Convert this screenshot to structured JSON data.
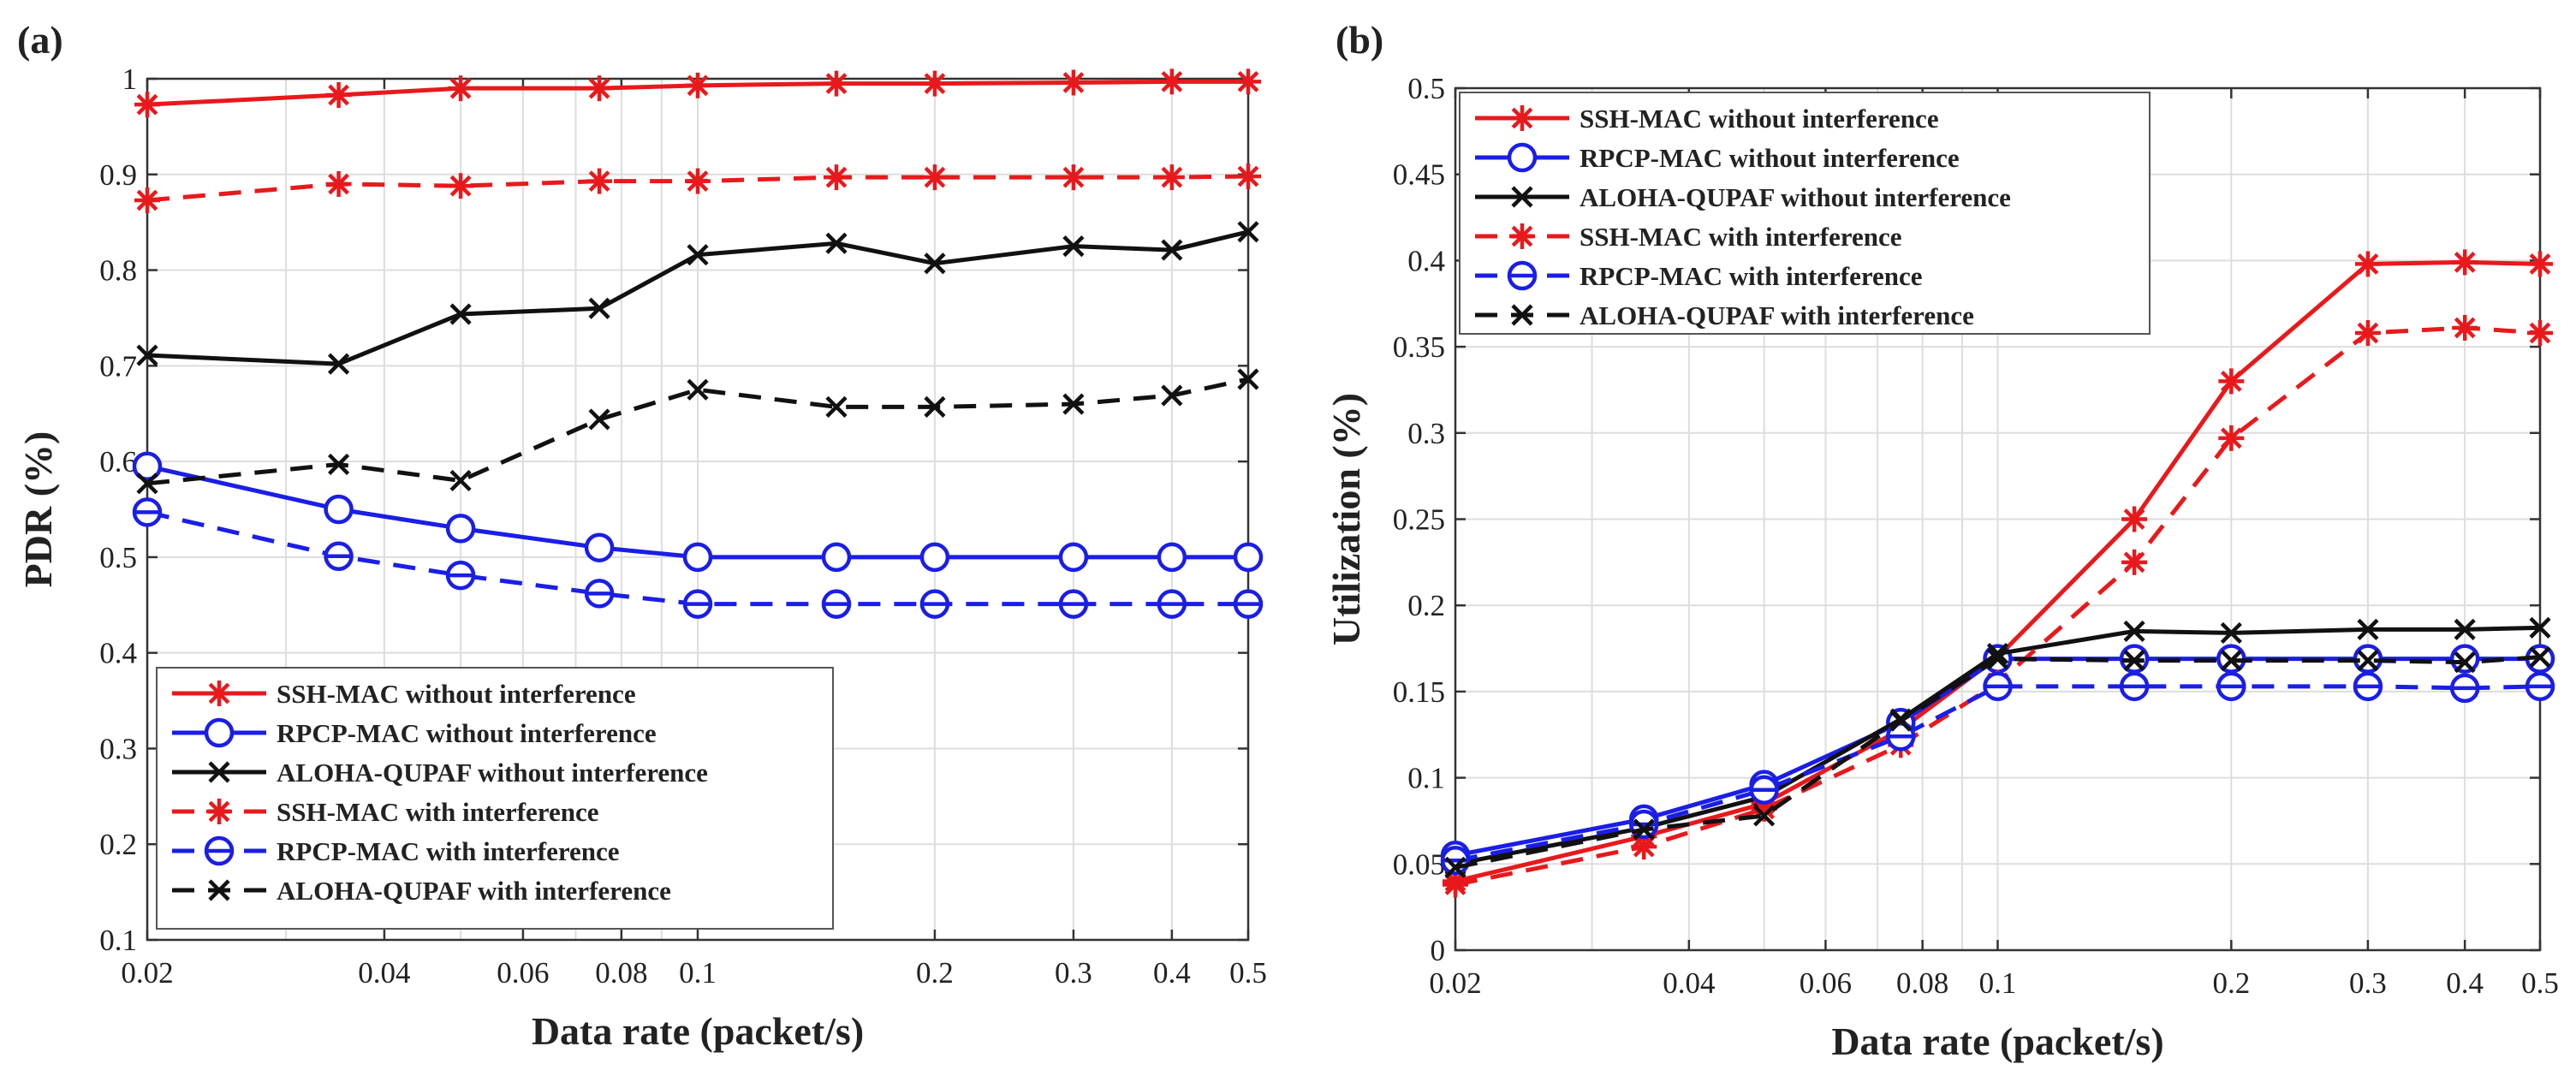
{
  "colors": {
    "red": "#e8191c",
    "blue": "#1a1ee6",
    "black": "#111111",
    "grid": "#dddddd",
    "axis": "#333333"
  },
  "chart_data": [
    {
      "type": "line",
      "panel_label": "(a)",
      "xlabel": "Data rate (packet/s)",
      "ylabel": "PDR (%)",
      "xscale": "log",
      "xlim": [
        0.02,
        0.5
      ],
      "ylim": [
        0.1,
        1
      ],
      "xticks": [
        0.02,
        0.04,
        0.06,
        0.08,
        0.1,
        0.2,
        0.3,
        0.4,
        0.5
      ],
      "xtick_labels": [
        "0.02",
        "0.04",
        "0.06",
        "0.08",
        "0.1",
        "0.2",
        "0.3",
        "0.4",
        "0.5"
      ],
      "yticks": [
        0.1,
        0.2,
        0.3,
        0.4,
        0.5,
        0.6,
        0.7,
        0.8,
        0.9,
        1
      ],
      "ytick_labels": [
        "0.1",
        "0.2",
        "0.3",
        "0.4",
        "0.5",
        "0.6",
        "0.7",
        "0.8",
        "0.9",
        "1"
      ],
      "grid": true,
      "legend_position": "bottom-left",
      "x": [
        0.02,
        0.035,
        0.05,
        0.075,
        0.1,
        0.15,
        0.2,
        0.3,
        0.4,
        0.5
      ],
      "series": [
        {
          "name": "SSH-MAC without interference",
          "color": "red",
          "dash": "solid",
          "marker": "asterisk",
          "values": [
            0.973,
            0.983,
            0.99,
            0.99,
            0.993,
            0.995,
            0.995,
            0.996,
            0.997,
            0.997
          ]
        },
        {
          "name": "RPCP-MAC without interference",
          "color": "blue",
          "dash": "solid",
          "marker": "circle",
          "values": [
            0.595,
            0.55,
            0.53,
            0.51,
            0.5,
            0.5,
            0.5,
            0.5,
            0.5,
            0.5
          ]
        },
        {
          "name": "ALOHA-QUPAF without interference",
          "color": "black",
          "dash": "solid",
          "marker": "x",
          "values": [
            0.711,
            0.702,
            0.754,
            0.76,
            0.816,
            0.828,
            0.807,
            0.825,
            0.821,
            0.84
          ]
        },
        {
          "name": "SSH-MAC with interference",
          "color": "red",
          "dash": "dashed",
          "marker": "asterisk",
          "values": [
            0.873,
            0.89,
            0.888,
            0.893,
            0.893,
            0.897,
            0.897,
            0.897,
            0.897,
            0.898
          ]
        },
        {
          "name": "RPCP-MAC with interference",
          "color": "blue",
          "dash": "dashed",
          "marker": "circle-line",
          "values": [
            0.547,
            0.501,
            0.481,
            0.462,
            0.451,
            0.451,
            0.451,
            0.451,
            0.451,
            0.451
          ]
        },
        {
          "name": "ALOHA-QUPAF with interference",
          "color": "black",
          "dash": "dashed",
          "marker": "x",
          "values": [
            0.577,
            0.597,
            0.58,
            0.644,
            0.675,
            0.657,
            0.657,
            0.66,
            0.669,
            0.686
          ]
        }
      ]
    },
    {
      "type": "line",
      "panel_label": "(b)",
      "xlabel": "Data rate (packet/s)",
      "ylabel": "Utilization (%)",
      "xscale": "log",
      "xlim": [
        0.02,
        0.5
      ],
      "ylim": [
        0,
        0.5
      ],
      "xticks": [
        0.02,
        0.04,
        0.06,
        0.08,
        0.1,
        0.2,
        0.3,
        0.4,
        0.5
      ],
      "xtick_labels": [
        "0.02",
        "0.04",
        "0.06",
        "0.08",
        "0.1",
        "0.2",
        "0.3",
        "0.4",
        "0.5"
      ],
      "yticks": [
        0,
        0.05,
        0.1,
        0.15,
        0.2,
        0.25,
        0.3,
        0.35,
        0.4,
        0.45,
        0.5
      ],
      "ytick_labels": [
        "0",
        "0.05",
        "0.1",
        "0.15",
        "0.2",
        "0.25",
        "0.3",
        "0.35",
        "0.4",
        "0.45",
        "0.5"
      ],
      "grid": true,
      "legend_position": "top-left",
      "x": [
        0.02,
        0.035,
        0.05,
        0.075,
        0.1,
        0.15,
        0.2,
        0.3,
        0.4,
        0.5
      ],
      "series": [
        {
          "name": "SSH-MAC without interference",
          "color": "red",
          "dash": "solid",
          "marker": "asterisk",
          "values": [
            0.04,
            0.066,
            0.085,
            0.128,
            0.17,
            0.25,
            0.33,
            0.398,
            0.399,
            0.398
          ]
        },
        {
          "name": "RPCP-MAC without interference",
          "color": "blue",
          "dash": "solid",
          "marker": "circle",
          "values": [
            0.055,
            0.076,
            0.096,
            0.132,
            0.169,
            0.169,
            0.169,
            0.169,
            0.169,
            0.169
          ]
        },
        {
          "name": "ALOHA-QUPAF without interference",
          "color": "black",
          "dash": "solid",
          "marker": "x",
          "values": [
            0.05,
            0.071,
            0.089,
            0.134,
            0.172,
            0.185,
            0.184,
            0.186,
            0.186,
            0.187
          ]
        },
        {
          "name": "SSH-MAC with interference",
          "color": "red",
          "dash": "dashed",
          "marker": "asterisk",
          "values": [
            0.038,
            0.06,
            0.082,
            0.119,
            0.155,
            0.225,
            0.297,
            0.358,
            0.361,
            0.358
          ]
        },
        {
          "name": "RPCP-MAC with interference",
          "color": "blue",
          "dash": "dashed",
          "marker": "circle-line",
          "values": [
            0.052,
            0.073,
            0.093,
            0.124,
            0.153,
            0.153,
            0.153,
            0.153,
            0.152,
            0.153
          ]
        },
        {
          "name": "ALOHA-QUPAF with interference",
          "color": "black",
          "dash": "dashed",
          "marker": "x",
          "values": [
            0.048,
            0.07,
            0.078,
            0.133,
            0.169,
            0.168,
            0.168,
            0.168,
            0.167,
            0.17
          ]
        }
      ]
    }
  ]
}
